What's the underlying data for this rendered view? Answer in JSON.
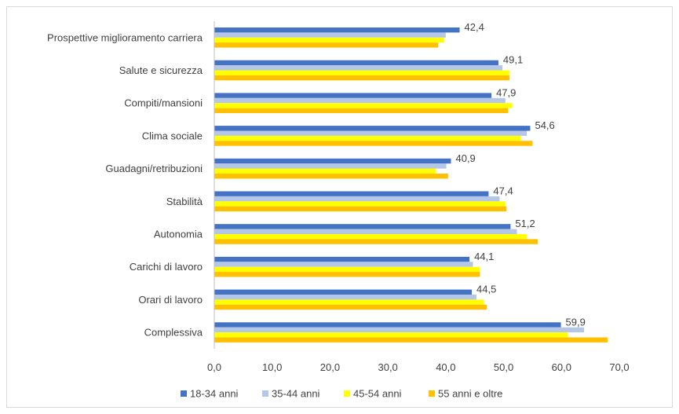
{
  "chart_data": {
    "type": "bar",
    "orientation": "horizontal",
    "categories": [
      "Prospettive miglioramento carriera",
      "Salute e sicurezza",
      "Compiti/mansioni",
      "Clima sociale",
      "Guadagni/retribuzioni",
      "Stabilità",
      "Autonomia",
      "Carichi di lavoro",
      "Orari di lavoro",
      "Complessiva"
    ],
    "series": [
      {
        "name": "18-34 anni",
        "color": "#4472C4",
        "values": [
          42.4,
          49.1,
          47.9,
          54.6,
          40.9,
          47.4,
          51.2,
          44.1,
          44.5,
          59.9
        ]
      },
      {
        "name": "35-44 anni",
        "color": "#B4C7E7",
        "values": [
          40.0,
          49.8,
          50.3,
          54.0,
          40.1,
          49.3,
          52.3,
          44.7,
          45.3,
          63.9
        ]
      },
      {
        "name": "45-54 anni",
        "color": "#FFFF00",
        "values": [
          39.7,
          51.0,
          51.5,
          53.0,
          38.3,
          50.3,
          54.0,
          45.9,
          46.6,
          61.1
        ]
      },
      {
        "name": "55 anni e oltre",
        "color": "#FFC000",
        "values": [
          38.7,
          51.0,
          50.8,
          55.0,
          40.4,
          50.5,
          55.9,
          45.9,
          47.1,
          68.0
        ]
      }
    ],
    "data_labels": [
      "42,4",
      "49,1",
      "47,9",
      "54,6",
      "40,9",
      "47,4",
      "51,2",
      "44,1",
      "44,5",
      "59,9"
    ],
    "xlim": [
      0,
      70
    ],
    "xticks": [
      "0,0",
      "10,0",
      "20,0",
      "30,0",
      "40,0",
      "50,0",
      "60,0",
      "70,0"
    ],
    "grid": false,
    "legend_position": "bottom"
  }
}
